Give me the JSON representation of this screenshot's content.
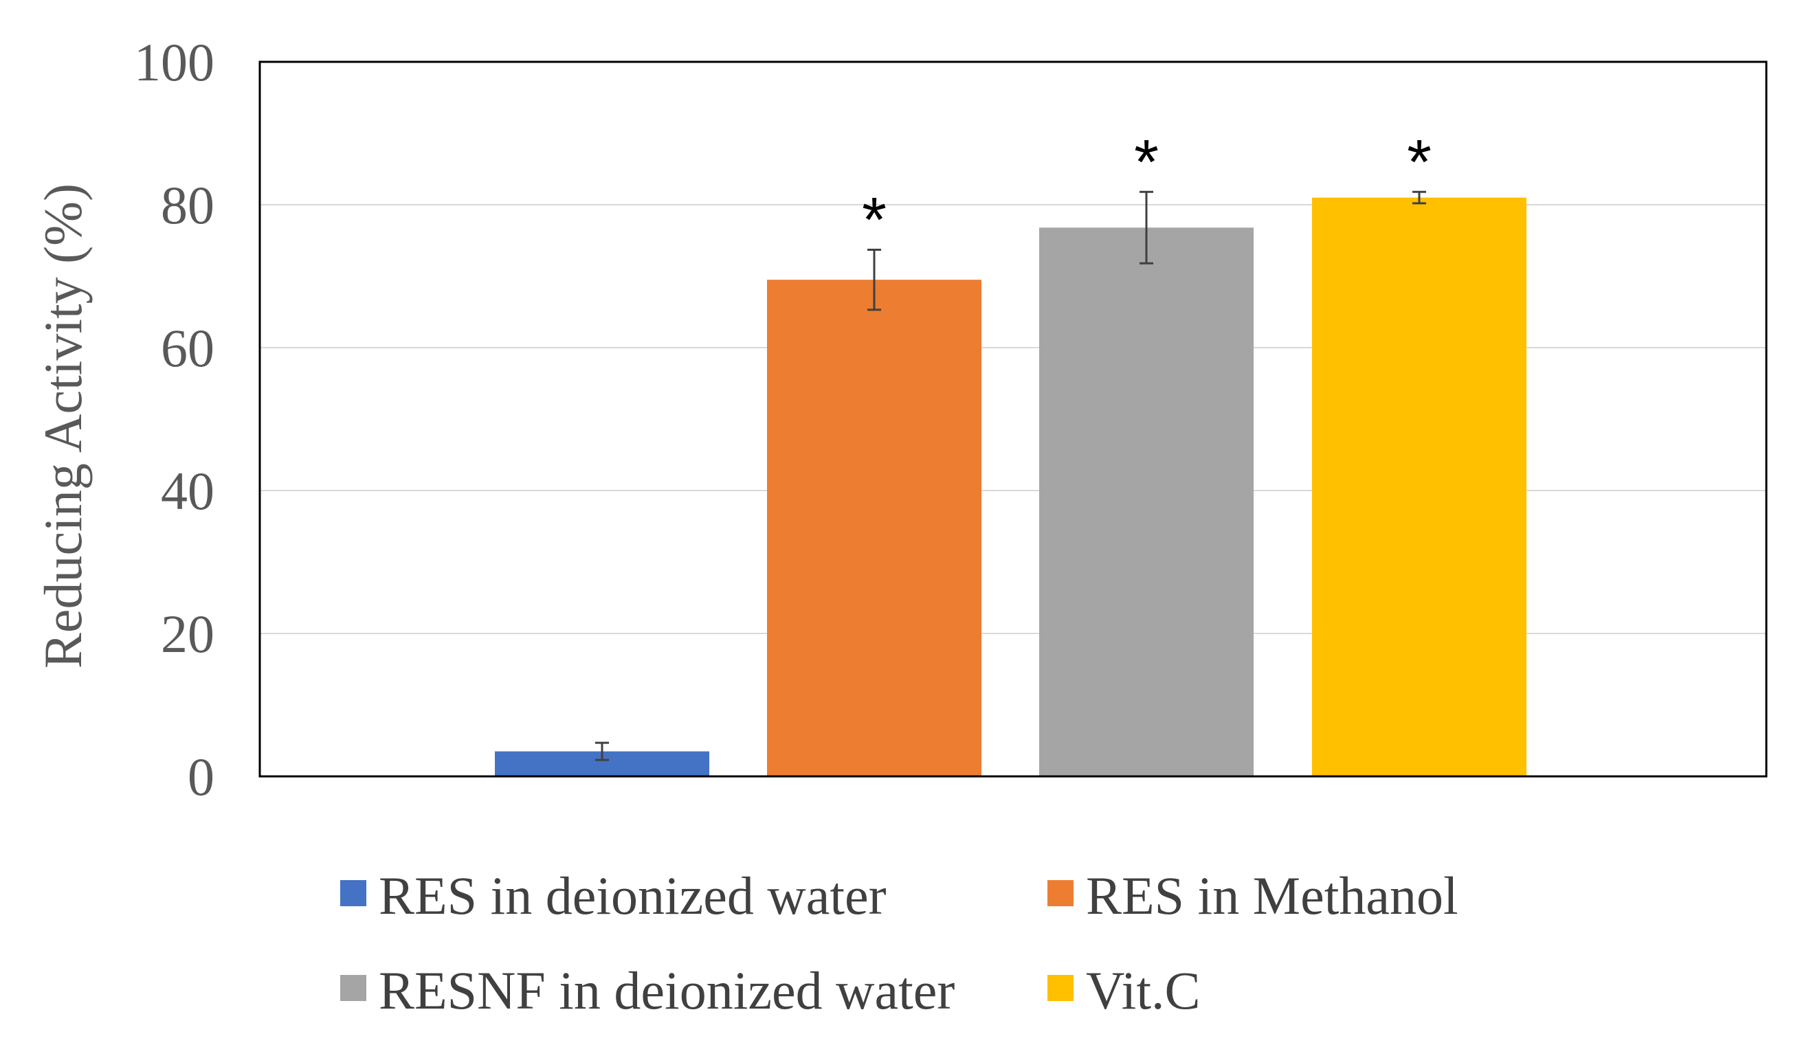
{
  "chart_data": {
    "type": "bar",
    "title": "",
    "xlabel": "",
    "ylabel": "Reducing Activity (%)",
    "ylim": [
      0,
      100
    ],
    "yticks": [
      0,
      20,
      40,
      60,
      80,
      100
    ],
    "grid": true,
    "legend_position": "bottom",
    "categories": [
      "RES in deionized water",
      "RES in Methanol",
      "RESNF in deionized water",
      "Vit.C"
    ],
    "values": [
      3.5,
      69.5,
      76.8,
      81.0
    ],
    "errors": [
      1.2,
      4.2,
      5.0,
      0.8
    ],
    "significance": [
      "",
      "*",
      "*",
      "*"
    ],
    "colors": [
      "#4472C4",
      "#ED7D31",
      "#A5A5A5",
      "#FFC000"
    ],
    "gridline_color": "#d9d9d9",
    "axis_color": "#000000"
  }
}
